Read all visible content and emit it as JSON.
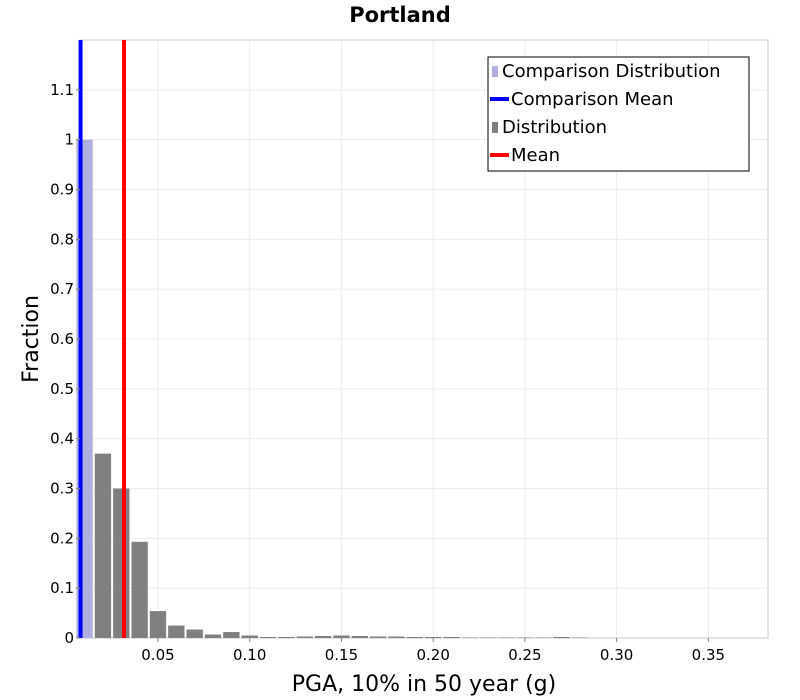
{
  "chart_data": {
    "type": "bar",
    "title": "Portland",
    "xlabel": "PGA, 10% in 50 year (g)",
    "ylabel": "Fraction",
    "xlim": [
      0.0075,
      0.3825
    ],
    "ylim": [
      0,
      1.2
    ],
    "bin_width": 0.01,
    "x_ticks": [
      {
        "value": 0.05,
        "label": "0.05"
      },
      {
        "value": 0.1,
        "label": "0.10"
      },
      {
        "value": 0.15,
        "label": "0.15"
      },
      {
        "value": 0.2,
        "label": "0.20"
      },
      {
        "value": 0.25,
        "label": "0.25"
      },
      {
        "value": 0.3,
        "label": "0.30"
      },
      {
        "value": 0.35,
        "label": "0.35"
      }
    ],
    "y_ticks": [
      {
        "value": 0,
        "label": "0"
      },
      {
        "value": 0.1,
        "label": "0.1"
      },
      {
        "value": 0.2,
        "label": "0.2"
      },
      {
        "value": 0.3,
        "label": "0.3"
      },
      {
        "value": 0.4,
        "label": "0.4"
      },
      {
        "value": 0.5,
        "label": "0.5"
      },
      {
        "value": 0.6,
        "label": "0.6"
      },
      {
        "value": 0.7,
        "label": "0.7"
      },
      {
        "value": 0.8,
        "label": "0.8"
      },
      {
        "value": 0.9,
        "label": "0.9"
      },
      {
        "value": 1,
        "label": "1"
      },
      {
        "value": 1.1,
        "label": "1.1"
      }
    ],
    "grid": true,
    "legend_position": "top-right",
    "colors": {
      "comparison_distribution": "#b0b0e0",
      "comparison_mean": "#0000ff",
      "distribution": "#808080",
      "mean": "#ff0000"
    },
    "series": [
      {
        "name": "Comparison Distribution",
        "kind": "bars",
        "x": [
          0.01
        ],
        "values": [
          1.0
        ]
      },
      {
        "name": "Distribution",
        "kind": "bars",
        "x": [
          0.02,
          0.03,
          0.04,
          0.05,
          0.06,
          0.07,
          0.08,
          0.09,
          0.1,
          0.11,
          0.12,
          0.13,
          0.14,
          0.15,
          0.16,
          0.17,
          0.18,
          0.19,
          0.2,
          0.21,
          0.22,
          0.23,
          0.24,
          0.25,
          0.26,
          0.27,
          0.28
        ],
        "values": [
          0.37,
          0.3,
          0.193,
          0.054,
          0.025,
          0.017,
          0.007,
          0.012,
          0.005,
          0.002,
          0.002,
          0.003,
          0.004,
          0.005,
          0.004,
          0.003,
          0.003,
          0.002,
          0.002,
          0.002,
          0.001,
          0.001,
          0.001,
          0.001,
          0.001,
          0.002,
          0.001
        ]
      },
      {
        "name": "Comparison Mean",
        "kind": "vline",
        "x": 0.0078
      },
      {
        "name": "Mean",
        "kind": "vline",
        "x": 0.0315
      }
    ],
    "legend": [
      {
        "label": "Comparison Distribution",
        "symbol": "square",
        "color_key": "comparison_distribution"
      },
      {
        "label": "Comparison Mean",
        "symbol": "line",
        "color_key": "comparison_mean"
      },
      {
        "label": "Distribution",
        "symbol": "square",
        "color_key": "distribution"
      },
      {
        "label": "Mean",
        "symbol": "line",
        "color_key": "mean"
      }
    ]
  }
}
